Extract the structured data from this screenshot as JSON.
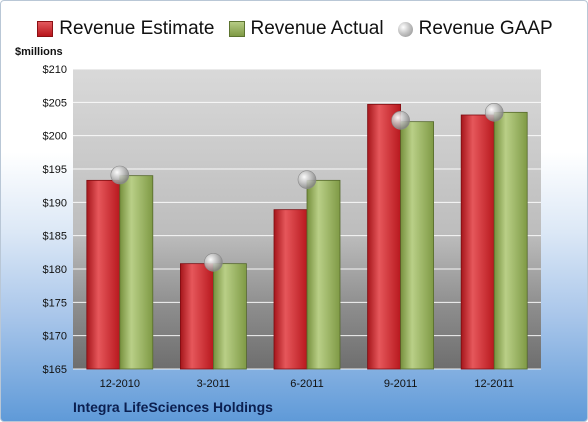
{
  "legend": {
    "estimate": "Revenue Estimate",
    "actual": "Revenue Actual",
    "gaap": "Revenue GAAP"
  },
  "units_label": "$millions",
  "company": "Integra LifeSciences Holdings",
  "colors": {
    "estimate": "#c8252b",
    "actual": "#95ae5a",
    "gaap": "#b0b0b0"
  },
  "chart_data": {
    "type": "bar",
    "title": "",
    "xlabel": "",
    "ylabel": "$millions",
    "categories": [
      "12-2010",
      "3-2011",
      "6-2011",
      "9-2011",
      "12-2011"
    ],
    "series": [
      {
        "name": "Revenue Estimate",
        "values": [
          193.3,
          180.8,
          188.9,
          204.7,
          203.1
        ]
      },
      {
        "name": "Revenue Actual",
        "values": [
          194.0,
          180.8,
          193.3,
          202.1,
          203.5
        ]
      },
      {
        "name": "Revenue GAAP",
        "values": [
          194.1,
          181.0,
          193.4,
          202.3,
          203.5
        ]
      }
    ],
    "ylim": [
      165,
      210
    ],
    "yticks": [
      165,
      170,
      175,
      180,
      185,
      190,
      195,
      200,
      205,
      210
    ],
    "ytick_labels": [
      "$165",
      "$170",
      "$175",
      "$180",
      "$185",
      "$190",
      "$195",
      "$200",
      "$205",
      "$210"
    ],
    "grid": true,
    "legend_position": "top"
  }
}
